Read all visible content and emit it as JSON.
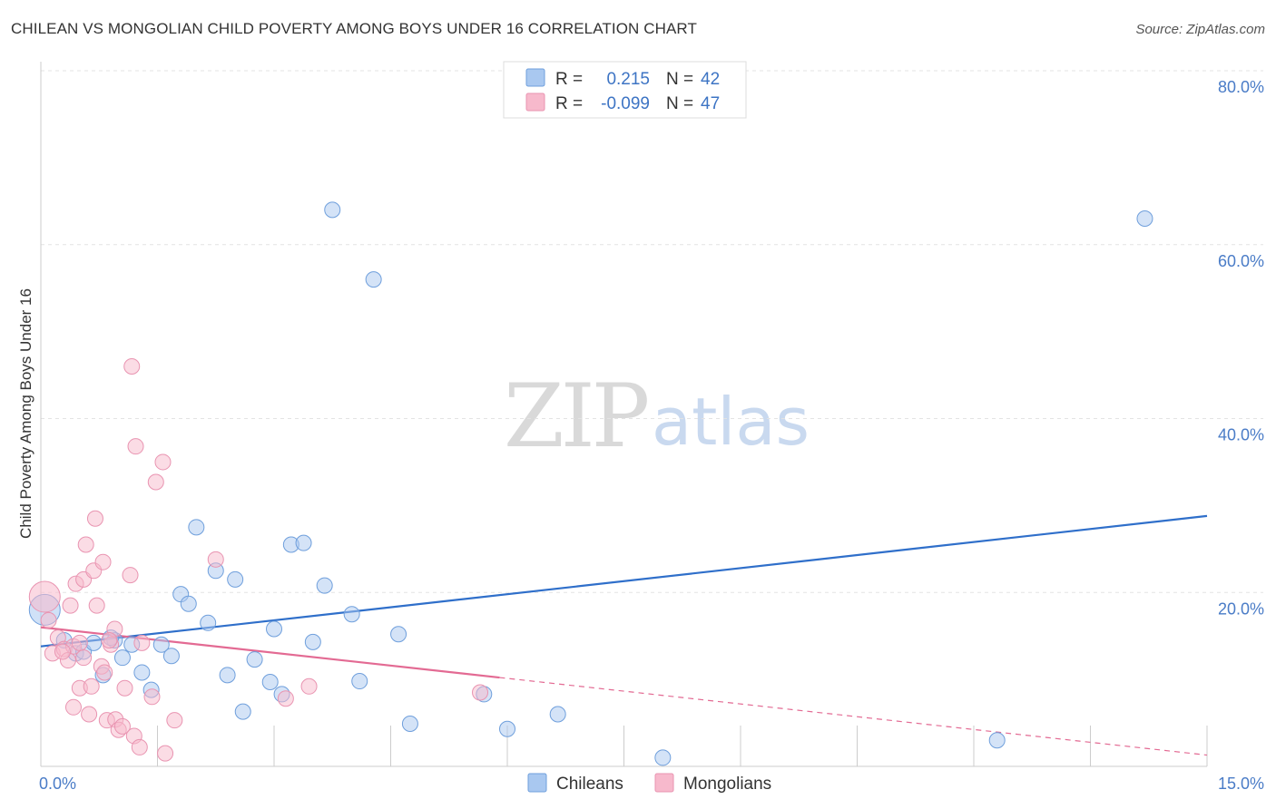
{
  "header": {
    "title": "CHILEAN VS MONGOLIAN CHILD POVERTY AMONG BOYS UNDER 16 CORRELATION CHART",
    "source": "Source: ZipAtlas.com"
  },
  "watermark": {
    "zip": "ZIP",
    "atlas": "atlas"
  },
  "legend": {
    "r_label": "R =",
    "n_label": "N =",
    "rows": [
      {
        "r": "0.215",
        "n": "42",
        "color": "#a9c8f0"
      },
      {
        "r": "-0.099",
        "n": "47",
        "color": "#f7b9cc"
      }
    ]
  },
  "bottom_legend": [
    {
      "label": "Chileans",
      "color": "#a9c8f0"
    },
    {
      "label": "Mongolians",
      "color": "#f7b9cc"
    }
  ],
  "chart_data": {
    "type": "scatter",
    "title": "CHILEAN VS MONGOLIAN CHILD POVERTY AMONG BOYS UNDER 16 CORRELATION CHART",
    "xlabel": "",
    "ylabel": "Child Poverty Among Boys Under 16",
    "xlim": [
      0,
      15
    ],
    "ylim": [
      0,
      80
    ],
    "x_tick_labels": [
      "0.0%",
      "15.0%"
    ],
    "y_ticks": [
      20,
      40,
      60,
      80
    ],
    "y_tick_labels": [
      "20.0%",
      "40.0%",
      "60.0%",
      "80.0%"
    ],
    "grid": true,
    "legend_position": "top-center",
    "series": [
      {
        "name": "Chileans",
        "color": "#a9c8f0",
        "stroke": "#6f9fdc",
        "trend_color": "#2f6fca",
        "trend": {
          "x0": 0,
          "y0": 13.8,
          "x1": 15,
          "y1": 28.8
        },
        "points": [
          {
            "x": 0.05,
            "y": 18.0,
            "big": true
          },
          {
            "x": 0.45,
            "y": 13.0
          },
          {
            "x": 0.55,
            "y": 13.2
          },
          {
            "x": 0.68,
            "y": 14.2
          },
          {
            "x": 0.8,
            "y": 10.5
          },
          {
            "x": 0.95,
            "y": 14.5
          },
          {
            "x": 1.05,
            "y": 12.5
          },
          {
            "x": 1.17,
            "y": 14.0
          },
          {
            "x": 1.3,
            "y": 10.8
          },
          {
            "x": 1.42,
            "y": 8.8
          },
          {
            "x": 1.55,
            "y": 14.0
          },
          {
            "x": 1.68,
            "y": 12.7
          },
          {
            "x": 1.8,
            "y": 19.8
          },
          {
            "x": 1.9,
            "y": 18.7
          },
          {
            "x": 2.0,
            "y": 27.5
          },
          {
            "x": 2.15,
            "y": 16.5
          },
          {
            "x": 2.25,
            "y": 22.5
          },
          {
            "x": 2.4,
            "y": 10.5
          },
          {
            "x": 2.5,
            "y": 21.5
          },
          {
            "x": 2.6,
            "y": 6.3
          },
          {
            "x": 2.75,
            "y": 12.3
          },
          {
            "x": 2.95,
            "y": 9.7
          },
          {
            "x": 3.0,
            "y": 15.8
          },
          {
            "x": 3.1,
            "y": 8.3
          },
          {
            "x": 3.22,
            "y": 25.5
          },
          {
            "x": 3.38,
            "y": 25.7
          },
          {
            "x": 3.5,
            "y": 14.3
          },
          {
            "x": 3.65,
            "y": 20.8
          },
          {
            "x": 3.75,
            "y": 64.0
          },
          {
            "x": 4.0,
            "y": 17.5
          },
          {
            "x": 4.1,
            "y": 9.8
          },
          {
            "x": 4.28,
            "y": 56.0
          },
          {
            "x": 4.6,
            "y": 15.2
          },
          {
            "x": 4.75,
            "y": 4.9
          },
          {
            "x": 5.7,
            "y": 8.3
          },
          {
            "x": 6.0,
            "y": 4.3
          },
          {
            "x": 6.65,
            "y": 6.0
          },
          {
            "x": 8.0,
            "y": 1.0
          },
          {
            "x": 12.3,
            "y": 3.0
          },
          {
            "x": 14.2,
            "y": 63.0
          },
          {
            "x": 0.3,
            "y": 14.5
          },
          {
            "x": 0.9,
            "y": 14.8
          }
        ]
      },
      {
        "name": "Mongolians",
        "color": "#f7b9cc",
        "stroke": "#e994b1",
        "trend_color": "#e36a93",
        "trend": {
          "x0": 0,
          "y0": 16.0,
          "x1": 15,
          "y1": 1.3,
          "solid_until": 5.9
        },
        "points": [
          {
            "x": 0.05,
            "y": 19.5,
            "big": true
          },
          {
            "x": 0.1,
            "y": 16.8
          },
          {
            "x": 0.15,
            "y": 13.0
          },
          {
            "x": 0.22,
            "y": 14.8
          },
          {
            "x": 0.3,
            "y": 13.5
          },
          {
            "x": 0.35,
            "y": 12.2
          },
          {
            "x": 0.42,
            "y": 13.8
          },
          {
            "x": 0.5,
            "y": 14.2
          },
          {
            "x": 0.38,
            "y": 18.5
          },
          {
            "x": 0.42,
            "y": 6.8
          },
          {
            "x": 0.45,
            "y": 21.0
          },
          {
            "x": 0.5,
            "y": 9.0
          },
          {
            "x": 0.55,
            "y": 21.5
          },
          {
            "x": 0.58,
            "y": 25.5
          },
          {
            "x": 0.62,
            "y": 6.0
          },
          {
            "x": 0.65,
            "y": 9.2
          },
          {
            "x": 0.68,
            "y": 22.5
          },
          {
            "x": 0.7,
            "y": 28.5
          },
          {
            "x": 0.72,
            "y": 18.5
          },
          {
            "x": 0.78,
            "y": 11.5
          },
          {
            "x": 0.8,
            "y": 23.5
          },
          {
            "x": 0.82,
            "y": 10.8
          },
          {
            "x": 0.85,
            "y": 5.3
          },
          {
            "x": 0.9,
            "y": 14.0
          },
          {
            "x": 0.95,
            "y": 15.8
          },
          {
            "x": 0.96,
            "y": 5.4
          },
          {
            "x": 1.0,
            "y": 4.2
          },
          {
            "x": 1.05,
            "y": 4.6
          },
          {
            "x": 1.08,
            "y": 9.0
          },
          {
            "x": 1.15,
            "y": 22.0
          },
          {
            "x": 1.17,
            "y": 46.0
          },
          {
            "x": 1.2,
            "y": 3.5
          },
          {
            "x": 1.22,
            "y": 36.8
          },
          {
            "x": 1.27,
            "y": 2.2
          },
          {
            "x": 1.3,
            "y": 14.2
          },
          {
            "x": 1.43,
            "y": 8.0
          },
          {
            "x": 1.48,
            "y": 32.7
          },
          {
            "x": 1.57,
            "y": 35.0
          },
          {
            "x": 1.6,
            "y": 1.5
          },
          {
            "x": 1.72,
            "y": 5.3
          },
          {
            "x": 2.25,
            "y": 23.8
          },
          {
            "x": 3.15,
            "y": 7.8
          },
          {
            "x": 3.45,
            "y": 9.2
          },
          {
            "x": 5.65,
            "y": 8.5
          },
          {
            "x": 0.28,
            "y": 13.2
          },
          {
            "x": 0.55,
            "y": 12.5
          },
          {
            "x": 0.88,
            "y": 14.5
          }
        ]
      }
    ]
  }
}
